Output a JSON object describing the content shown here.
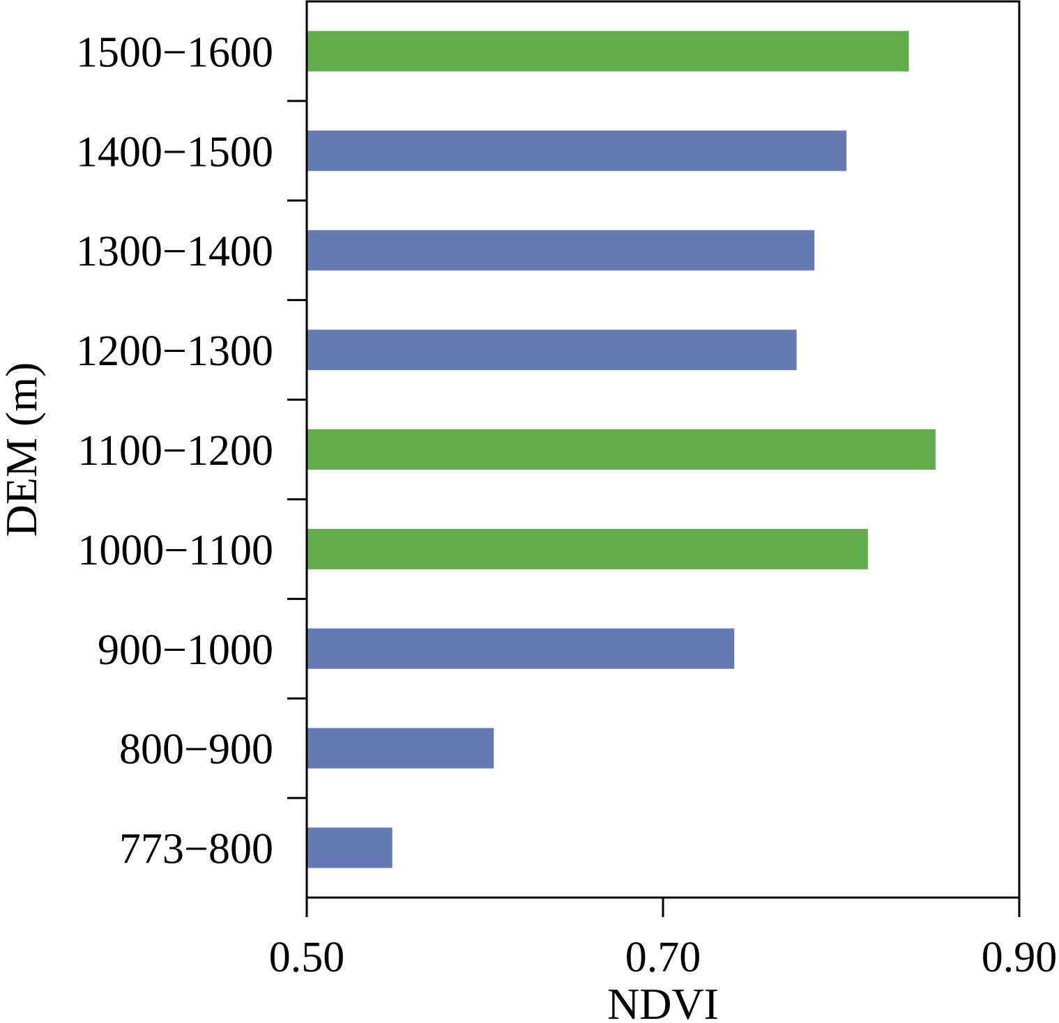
{
  "chart_data": {
    "type": "bar",
    "orientation": "horizontal",
    "title": "",
    "xlabel": "NDVI",
    "ylabel": "DEM (m)",
    "xlim": [
      0.5,
      0.9
    ],
    "xticks": [
      "0.50",
      "0.70",
      "0.90"
    ],
    "grid": false,
    "categories": [
      "1500−1600",
      "1400−1500",
      "1300−1400",
      "1200−1300",
      "1100−1200",
      "1000−1100",
      "900−1000",
      "800−900",
      "773−800"
    ],
    "values": [
      0.838,
      0.803,
      0.785,
      0.775,
      0.853,
      0.815,
      0.74,
      0.605,
      0.548
    ],
    "bar_colors": [
      "#62ad4b",
      "#657ab3",
      "#657ab3",
      "#657ab3",
      "#62ad4b",
      "#62ad4b",
      "#657ab3",
      "#657ab3",
      "#657ab3"
    ]
  }
}
